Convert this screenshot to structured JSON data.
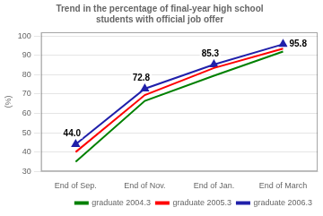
{
  "chart_data": {
    "type": "line",
    "title": "Trend in the percentage of final-year high school\nstudents with official job offer",
    "y_label": "(%)",
    "categories": [
      "End of Sep.",
      "End of Nov.",
      "End of Jan.",
      "End of March"
    ],
    "series": [
      {
        "name": "graduate 2004.3",
        "color": "#008000",
        "line_style": "solid",
        "values": [
          35.0,
          66.5,
          79.5,
          92.0
        ]
      },
      {
        "name": "graduate 2005.3",
        "color": "#ff0000",
        "line_style": "solid",
        "values": [
          40.0,
          69.5,
          83.5,
          93.5
        ]
      },
      {
        "name": "graduate 2006.3",
        "color": "#2020aa",
        "line_style": "solid",
        "marker": "triangle",
        "values": [
          44.0,
          72.8,
          85.3,
          95.8
        ]
      }
    ],
    "annotations": [
      {
        "x": "End of Sep.",
        "y": 44.0,
        "text": "44.0"
      },
      {
        "x": "End of Nov.",
        "y": 72.8,
        "text": "72.8"
      },
      {
        "x": "End of Jan.",
        "y": 85.3,
        "text": "85.3"
      },
      {
        "x": "End of March",
        "y": 95.8,
        "text": "95.8"
      }
    ],
    "ylim": [
      30,
      102
    ],
    "yticks": [
      30,
      40,
      50,
      60,
      70,
      80,
      90,
      100
    ],
    "grid": true,
    "legend": "lower right"
  }
}
